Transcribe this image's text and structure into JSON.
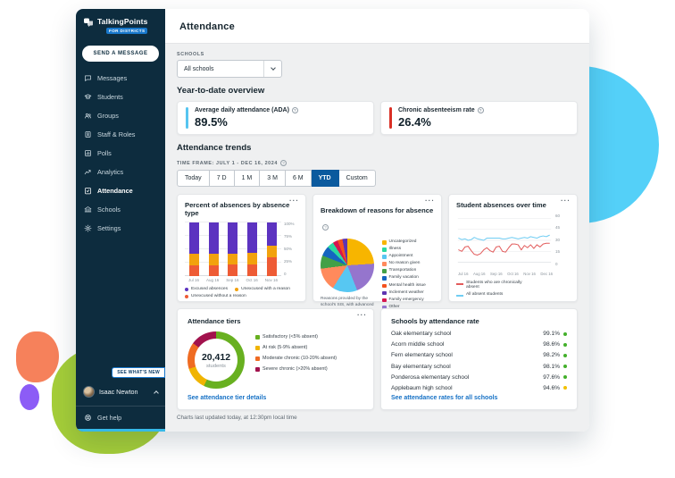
{
  "brand": {
    "name": "TalkingPoints",
    "badge": "FOR DISTRICTS"
  },
  "sidebar": {
    "send_button": "SEND A MESSAGE",
    "items": [
      {
        "label": "Messages",
        "icon": "messages-icon",
        "active": false
      },
      {
        "label": "Students",
        "icon": "students-icon",
        "active": false
      },
      {
        "label": "Groups",
        "icon": "groups-icon",
        "active": false
      },
      {
        "label": "Staff & Roles",
        "icon": "staff-roles-icon",
        "active": false
      },
      {
        "label": "Polls",
        "icon": "polls-icon",
        "active": false
      },
      {
        "label": "Analytics",
        "icon": "analytics-icon",
        "active": false
      },
      {
        "label": "Attendance",
        "icon": "attendance-icon",
        "active": true
      },
      {
        "label": "Schools",
        "icon": "schools-icon",
        "active": false
      },
      {
        "label": "Settings",
        "icon": "settings-icon",
        "active": false
      }
    ],
    "whats_new": "SEE WHAT'S NEW",
    "user_name": "Isaac Newton",
    "help_label": "Get help"
  },
  "header": {
    "title": "Attendance"
  },
  "filters": {
    "schools_label": "SCHOOLS",
    "schools_value": "All schools"
  },
  "overview": {
    "title": "Year-to-date overview",
    "metrics": [
      {
        "label": "Average daily attendance (ADA)",
        "value": "89.5%",
        "accent": "#56c5f0"
      },
      {
        "label": "Chronic absenteeism rate",
        "value": "26.4%",
        "accent": "#d93025"
      }
    ]
  },
  "trends": {
    "title": "Attendance trends",
    "time_frame_label": "TIME FRAME: JULY 1 - DEC 16, 2024",
    "buttons": [
      "Today",
      "7 D",
      "1 M",
      "3 M",
      "6 M",
      "YTD",
      "Custom"
    ],
    "active": "YTD"
  },
  "cards": {
    "bar_title": "Percent of absences by absence type",
    "pie_title": "Breakdown of reasons for absence",
    "pie_caption": "Reasons provided by the school's SIS, with advanced categorization by TalkingPoints.",
    "line_title": "Student absences over time",
    "tiers_title": "Attendance tiers",
    "tiers_link": "See attendance tier details",
    "schools_title": "Schools by attendance rate",
    "schools_link": "See attendance rates for all schools"
  },
  "chart_data": [
    {
      "id": "absence-type",
      "type": "bar",
      "stacked": true,
      "categories": [
        "Jul 16",
        "Aug 16",
        "Sep 16",
        "Oct 16",
        "Nov 16"
      ],
      "series": [
        {
          "name": "Excused absences",
          "color": "#5c33c0",
          "values": [
            58,
            58,
            58,
            56,
            43
          ]
        },
        {
          "name": "Unexcused with a reason",
          "color": "#f2a20d",
          "values": [
            22,
            22,
            21,
            23,
            22
          ]
        },
        {
          "name": "Unexcused without a reason",
          "color": "#ee5b35",
          "values": [
            20,
            20,
            21,
            21,
            35
          ]
        }
      ],
      "y_ticks": [
        "100%",
        "75%",
        "50%",
        "25%",
        "0"
      ],
      "ylim": [
        0,
        100
      ]
    },
    {
      "id": "absence-reasons",
      "type": "pie",
      "slices": [
        {
          "label": "Uncategorized",
          "value": 24,
          "color": "#f7b500"
        },
        {
          "label": "Other",
          "value": 20,
          "color": "#9575cd"
        },
        {
          "label": "Appointment",
          "value": 15,
          "color": "#57c7f2"
        },
        {
          "label": "No reason given",
          "value": 14,
          "color": "#ff8a5c"
        },
        {
          "label": "Transportation",
          "value": 8,
          "color": "#43a047"
        },
        {
          "label": "Family vacation",
          "value": 6,
          "color": "#1565c0"
        },
        {
          "label": "Illness",
          "value": 4,
          "color": "#2bd9a0"
        },
        {
          "label": "Family emergency",
          "value": 3,
          "color": "#d6164e"
        },
        {
          "label": "Mental health issue",
          "value": 3,
          "color": "#f4511e"
        },
        {
          "label": "Inclement weather",
          "value": 3,
          "color": "#5e35b1"
        }
      ],
      "legend": [
        {
          "label": "Uncategorized",
          "color": "#f7b500"
        },
        {
          "label": "Illness",
          "color": "#2bd9a0"
        },
        {
          "label": "Appointment",
          "color": "#57c7f2"
        },
        {
          "label": "No reason given",
          "color": "#ff8a5c"
        },
        {
          "label": "Transportation",
          "color": "#43a047"
        },
        {
          "label": "Family vacation",
          "color": "#1565c0"
        },
        {
          "label": "Mental health issue",
          "color": "#f4511e"
        },
        {
          "label": "Inclement weather",
          "color": "#5e35b1"
        },
        {
          "label": "Family emergency",
          "color": "#d6164e"
        },
        {
          "label": "Other",
          "color": "#9575cd"
        }
      ]
    },
    {
      "id": "absences-over-time",
      "type": "line",
      "x_ticks": [
        "Jul 16",
        "Aug 16",
        "Sep 16",
        "Oct 16",
        "Nov 16",
        "Dec 16"
      ],
      "y_ticks": [
        "60",
        "45",
        "30",
        "15",
        "0"
      ],
      "ylim": [
        0,
        60
      ],
      "series": [
        {
          "name": "Students who are chronically absent",
          "color": "#e25b5b",
          "values": [
            17,
            15,
            21,
            22,
            16,
            11,
            10,
            12,
            17,
            20,
            16,
            14,
            21,
            22,
            15,
            14,
            20,
            25,
            25,
            24,
            17,
            23,
            20,
            24,
            19,
            24,
            21,
            25,
            26,
            26
          ]
        },
        {
          "name": "All absent students",
          "color": "#70cdf3",
          "values": [
            33,
            31,
            32,
            30,
            31,
            34,
            32,
            31,
            30,
            33,
            33,
            33,
            33,
            33,
            32,
            32,
            33,
            34,
            33,
            32,
            33,
            34,
            33,
            35,
            34,
            33,
            35,
            36,
            35,
            37
          ]
        }
      ]
    },
    {
      "id": "attendance-tiers",
      "type": "pie",
      "donut": true,
      "center_value": "20,412",
      "center_label": "students",
      "slices": [
        {
          "label": "Satisfactory (<5% absent)",
          "value": 57,
          "color": "#68b020"
        },
        {
          "label": "At risk (5-9% absent)",
          "value": 13,
          "color": "#f0b400"
        },
        {
          "label": "Moderate chronic (10-20% absent)",
          "value": 15,
          "color": "#ef6b22"
        },
        {
          "label": "Severe chronic (>20% absent)",
          "value": 15,
          "color": "#a2124d"
        }
      ]
    },
    {
      "id": "schools-by-rate",
      "type": "table",
      "rows": [
        {
          "name": "Oak elementary school",
          "rate": "99.1%",
          "status_color": "#43b02a"
        },
        {
          "name": "Acorn middle school",
          "rate": "98.6%",
          "status_color": "#43b02a"
        },
        {
          "name": "Fern elementary school",
          "rate": "98.2%",
          "status_color": "#43b02a"
        },
        {
          "name": "Bay elementary school",
          "rate": "98.1%",
          "status_color": "#43b02a"
        },
        {
          "name": "Ponderosa elementary school",
          "rate": "97.6%",
          "status_color": "#43b02a"
        },
        {
          "name": "Applebaum high school",
          "rate": "94.6%",
          "status_color": "#f2c100"
        }
      ]
    }
  ],
  "footer": "Charts last updated today, at 12:30pm local time"
}
